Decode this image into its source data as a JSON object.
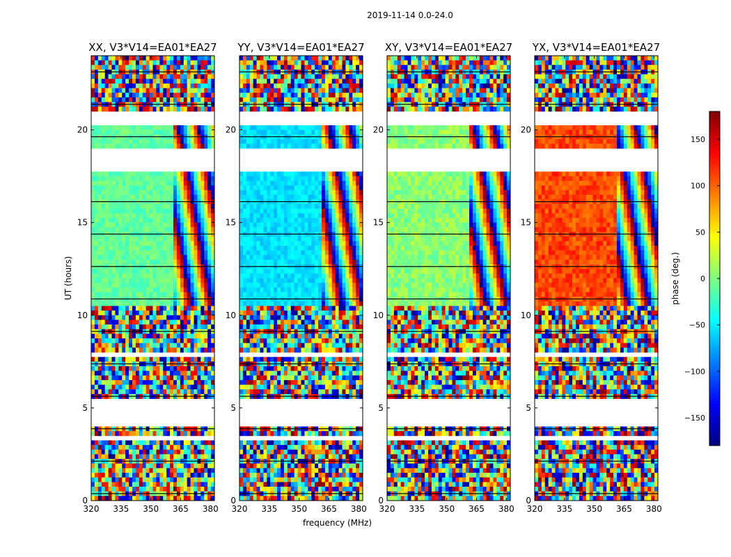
{
  "figure_title": "2019-11-14 0.0-24.0",
  "colors": {
    "map": [
      "#00007f",
      "#0000ff",
      "#007fff",
      "#00ffff",
      "#7fff7f",
      "#ffff00",
      "#ff7f00",
      "#ff0000",
      "#7f0000"
    ],
    "flagged": "#ffffff",
    "frame": "#000000"
  },
  "chart_data": [
    {
      "type": "heatmap",
      "title": "XX, V3*V14=EA01*EA27",
      "xlabel": "",
      "ylabel": "UT (hours)",
      "xlim": [
        320,
        382
      ],
      "ylim": [
        0,
        24
      ],
      "xticks": [
        320,
        335,
        350,
        365,
        380
      ],
      "yticks": [
        0,
        5,
        10,
        15,
        20
      ],
      "value": "phase (deg.)",
      "base_phase": -10,
      "texture_contrast": 0.75
    },
    {
      "type": "heatmap",
      "title": "YY, V3*V14=EA01*EA27",
      "xlabel": "frequency (MHz)",
      "ylabel": "",
      "xlim": [
        320,
        382
      ],
      "ylim": [
        0,
        24
      ],
      "xticks": [
        320,
        335,
        350,
        365,
        380
      ],
      "yticks": [
        0,
        5,
        10,
        15,
        20
      ],
      "value": "phase (deg.)",
      "base_phase": -55,
      "texture_contrast": 0.75
    },
    {
      "type": "heatmap",
      "title": "XY, V3*V14=EA01*EA27",
      "xlabel": "",
      "ylabel": "",
      "xlim": [
        320,
        382
      ],
      "ylim": [
        0,
        24
      ],
      "xticks": [
        320,
        335,
        350,
        365,
        380
      ],
      "yticks": [
        0,
        5,
        10,
        15,
        20
      ],
      "value": "phase (deg.)",
      "base_phase": 5,
      "texture_contrast": 1.0
    },
    {
      "type": "heatmap",
      "title": "YX, V3*V14=EA01*EA27",
      "xlabel": "",
      "ylabel": "",
      "xlim": [
        320,
        382
      ],
      "ylim": [
        0,
        24
      ],
      "xticks": [
        320,
        335,
        350,
        365,
        380
      ],
      "yticks": [
        0,
        5,
        10,
        15,
        20
      ],
      "value": "phase (deg.)",
      "base_phase": 110,
      "texture_contrast": 1.0
    }
  ],
  "colorbar": {
    "label": "phase (deg.)",
    "range": [
      -180,
      180
    ],
    "ticks": [
      -150,
      -100,
      -50,
      0,
      50,
      100,
      150
    ],
    "tick_labels": [
      "−150",
      "−100",
      "−50",
      "0",
      "50",
      "100",
      "150"
    ]
  },
  "flagged_ut_ranges": [
    [
      3.2,
      3.4
    ],
    [
      4.1,
      5.5
    ],
    [
      7.8,
      8.0
    ],
    [
      17.7,
      18.9
    ],
    [
      20.3,
      20.9
    ]
  ]
}
